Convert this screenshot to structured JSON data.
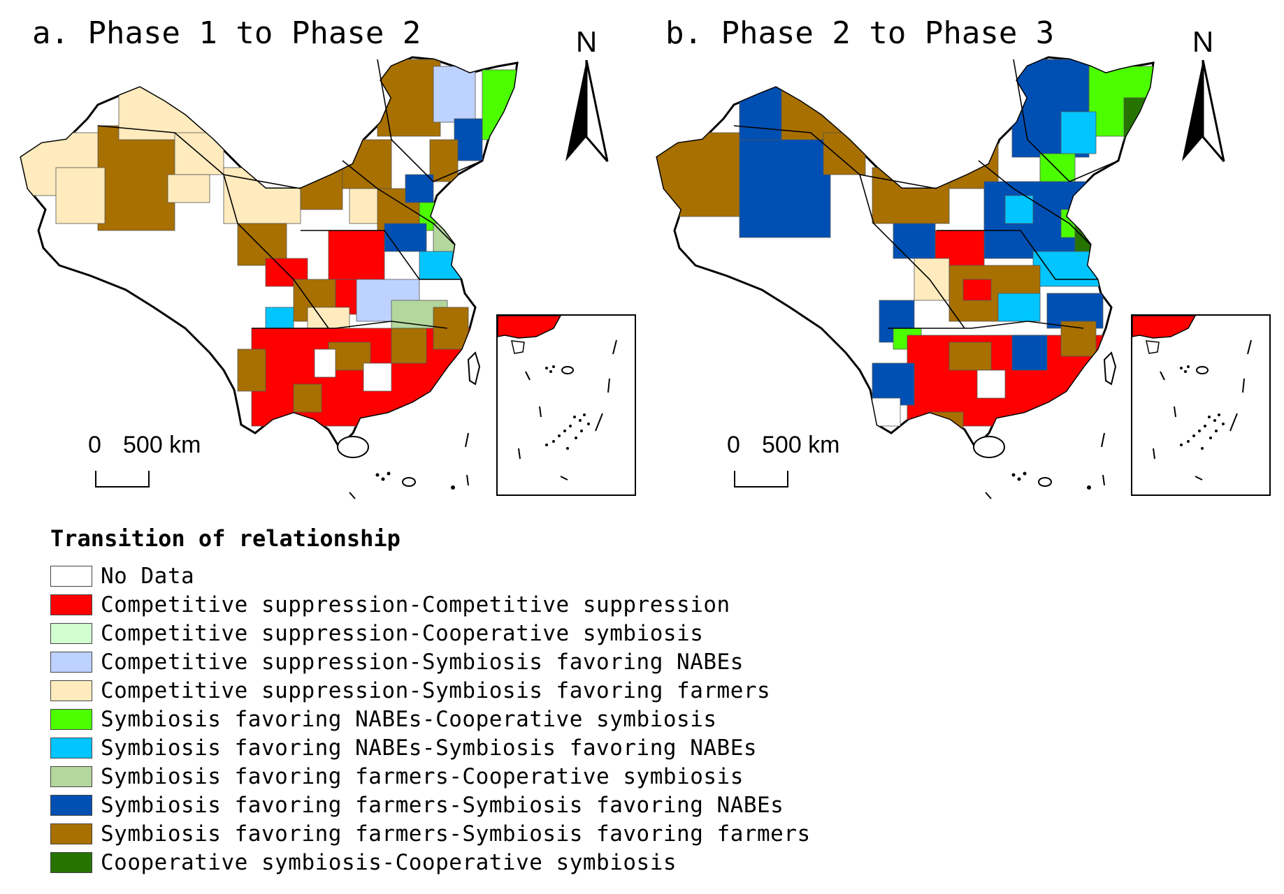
{
  "panels": [
    {
      "title": "a. Phase 1 to Phase 2",
      "north": "N",
      "scale_zero": "0",
      "scale_label": "500 km"
    },
    {
      "title": "b. Phase 2 to Phase 3",
      "north": "N",
      "scale_zero": "0",
      "scale_label": "500 km"
    }
  ],
  "legend": {
    "title": "Transition of  relationship",
    "items": [
      {
        "label": "No Data",
        "color": "#ffffff"
      },
      {
        "label": "Competitive suppression-Competitive suppression",
        "color": "#ff0000"
      },
      {
        "label": "Competitive suppression-Cooperative symbiosis",
        "color": "#d3ffd0"
      },
      {
        "label": "Competitive suppression-Symbiosis favoring NABEs",
        "color": "#bed2ff"
      },
      {
        "label": "Competitive suppression-Symbiosis favoring farmers",
        "color": "#ffebbe"
      },
      {
        "label": "Symbiosis favoring NABEs-Cooperative symbiosis",
        "color": "#4cff00"
      },
      {
        "label": "Symbiosis favoring NABEs-Symbiosis favoring NABEs",
        "color": "#00c5ff"
      },
      {
        "label": "Symbiosis favoring farmers-Cooperative symbiosis",
        "color": "#b4d79e"
      },
      {
        "label": "Symbiosis favoring farmers-Symbiosis favoring NABEs",
        "color": "#0050b4"
      },
      {
        "label": "Symbiosis favoring farmers-Symbiosis favoring farmers",
        "color": "#a87000"
      },
      {
        "label": "Cooperative symbiosis-Cooperative symbiosis",
        "color": "#267300"
      }
    ]
  },
  "icons": {
    "north_arrow": "north-arrow-icon"
  }
}
